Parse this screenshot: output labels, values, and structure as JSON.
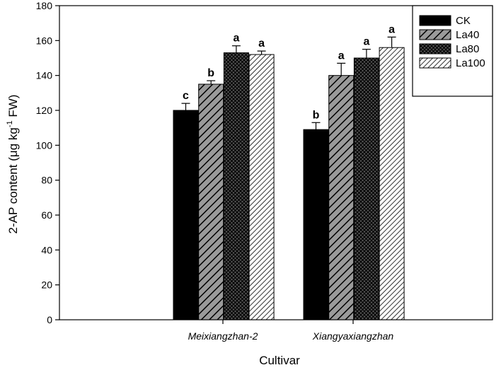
{
  "chart_data": {
    "type": "bar",
    "title": "",
    "xlabel": "Cultivar",
    "ylabel_main": "2-AP content (μg kg",
    "ylabel_sup": "-1",
    "ylabel_tail": " FW)",
    "categories": [
      "Meixiangzhan-2",
      "Xiangyaxiangzhan"
    ],
    "ylim": [
      0,
      180
    ],
    "yticks": [
      0,
      20,
      40,
      60,
      80,
      100,
      120,
      140,
      160,
      180
    ],
    "legend_position": "top-right",
    "series": [
      {
        "name": "CK",
        "pattern": "solid",
        "values": [
          120,
          109
        ],
        "errors": [
          4,
          4
        ],
        "letters": [
          "c",
          "b"
        ]
      },
      {
        "name": "La40",
        "pattern": "diag-wide",
        "values": [
          135,
          140
        ],
        "errors": [
          2,
          7
        ],
        "letters": [
          "b",
          "a"
        ]
      },
      {
        "name": "La80",
        "pattern": "crosshatch",
        "values": [
          153,
          150
        ],
        "errors": [
          4,
          5
        ],
        "letters": [
          "a",
          "a"
        ]
      },
      {
        "name": "La100",
        "pattern": "diag-fine",
        "values": [
          152,
          156
        ],
        "errors": [
          2,
          6
        ],
        "letters": [
          "a",
          "a"
        ]
      }
    ]
  }
}
